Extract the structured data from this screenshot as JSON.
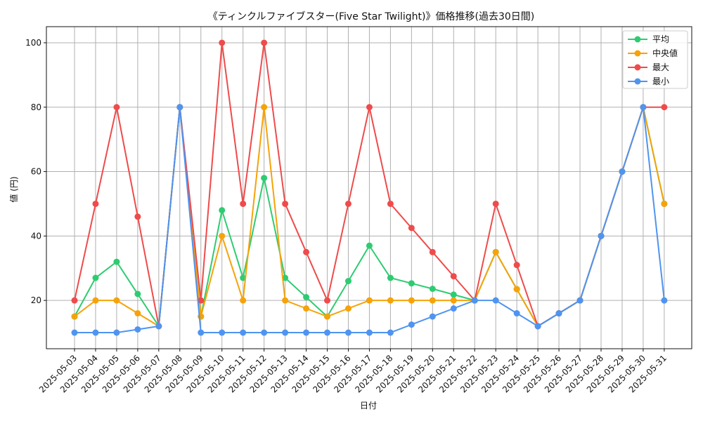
{
  "chart_data": {
    "type": "line",
    "title": "《ティンクルファイブスター(Five Star Twilight)》価格推移(過去30日間)",
    "xlabel": "日付",
    "ylabel": "値 (円)",
    "ylim": [
      5,
      105
    ],
    "yticks": [
      20,
      40,
      60,
      80,
      100
    ],
    "grid": true,
    "legend_position": "top-right",
    "categories": [
      "2025-05-03",
      "2025-05-04",
      "2025-05-05",
      "2025-05-06",
      "2025-05-07",
      "2025-05-08",
      "2025-05-09",
      "2025-05-10",
      "2025-05-11",
      "2025-05-12",
      "2025-05-13",
      "2025-05-14",
      "2025-05-15",
      "2025-05-16",
      "2025-05-17",
      "2025-05-18",
      "2025-05-19",
      "2025-05-20",
      "2025-05-21",
      "2025-05-22",
      "2025-05-23",
      "2025-05-24",
      "2025-05-25",
      "2025-05-26",
      "2025-05-27",
      "2025-05-28",
      "2025-05-29",
      "2025-05-30",
      "2025-05-31"
    ],
    "series": [
      {
        "name": "平均",
        "color": "#2ecc71",
        "values": [
          15,
          27,
          32,
          22,
          12,
          80,
          15,
          48,
          27,
          58,
          27,
          21,
          15,
          26,
          37,
          27,
          25.3,
          23.6,
          21.8,
          20,
          35,
          23.5,
          12,
          16,
          20,
          40,
          60,
          80,
          50
        ]
      },
      {
        "name": "中央値",
        "color": "#f5a30a",
        "values": [
          15,
          20,
          20,
          16,
          12,
          80,
          15,
          40,
          20,
          80,
          20,
          17.5,
          15,
          17.5,
          20,
          20,
          20,
          20,
          20,
          20,
          35,
          23.5,
          12,
          16,
          20,
          40,
          60,
          80,
          50
        ]
      },
      {
        "name": "最大",
        "color": "#ef4b4b",
        "values": [
          20,
          50,
          80,
          46,
          12,
          80,
          20,
          100,
          50,
          100,
          50,
          35,
          20,
          50,
          80,
          50,
          42.5,
          35,
          27.5,
          20,
          50,
          31,
          12,
          16,
          20,
          40,
          60,
          80,
          80
        ]
      },
      {
        "name": "最小",
        "color": "#4f94f0",
        "values": [
          10,
          10,
          10,
          11,
          12,
          80,
          10,
          10,
          10,
          10,
          10,
          10,
          10,
          10,
          10,
          10,
          12.5,
          15,
          17.5,
          20,
          20,
          16,
          12,
          16,
          20,
          40,
          60,
          80,
          20
        ]
      }
    ]
  }
}
